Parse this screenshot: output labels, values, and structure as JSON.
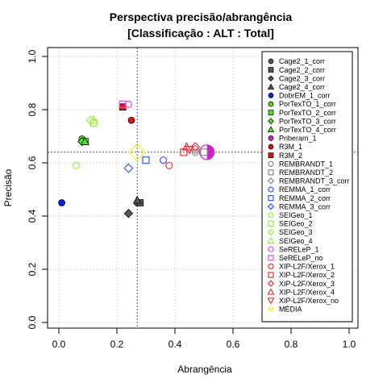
{
  "chart_data": {
    "type": "scatter",
    "title": [
      "Perspectiva precisão/abrangência",
      "[Classificação : ALT : Total]"
    ],
    "xlabel": "Abrangência",
    "ylabel": "Precisão",
    "xlim": [
      0,
      1
    ],
    "ylim": [
      0,
      1
    ],
    "x_ticks": [
      "0.0",
      "0.2",
      "0.4",
      "0.6",
      "0.8",
      "1.0"
    ],
    "y_ticks": [
      "0.0",
      "0.2",
      "0.4",
      "0.6",
      "0.8",
      "1.0"
    ],
    "grid": true,
    "reference_lines": {
      "x": 0.27,
      "y": 0.64
    },
    "legend_position": "top-right",
    "series": [
      {
        "name": "Cage2_1_corr",
        "marker": "circle-filled",
        "color": "#555555",
        "x": 0.27,
        "y": 0.45
      },
      {
        "name": "Cage2_2_corr",
        "marker": "square-filled",
        "color": "#555555",
        "x": 0.28,
        "y": 0.45
      },
      {
        "name": "Cage2_3_corr",
        "marker": "diamond-filled",
        "color": "#555555",
        "x": 0.24,
        "y": 0.41
      },
      {
        "name": "Cage2_4_corr",
        "marker": "triangle-filled",
        "color": "#555555",
        "x": 0.27,
        "y": 0.46
      },
      {
        "name": "DobrEM_1_corr",
        "marker": "circle-filled",
        "color": "#0022dd",
        "x": 0.01,
        "y": 0.45
      },
      {
        "name": "PorTexTO_1_corr",
        "marker": "circle-filled",
        "color": "#55dd22",
        "x": 0.08,
        "y": 0.69
      },
      {
        "name": "PorTexTO_2_corr",
        "marker": "square-filled",
        "color": "#55dd22",
        "x": 0.09,
        "y": 0.68
      },
      {
        "name": "PorTexTO_3_corr",
        "marker": "diamond-filled",
        "color": "#55dd22",
        "x": 0.08,
        "y": 0.68
      },
      {
        "name": "PorTexTO_4_corr",
        "marker": "triangle-filled",
        "color": "#55dd22",
        "x": 0.09,
        "y": 0.68
      },
      {
        "name": "Priberam_1",
        "marker": "circle-half",
        "color": "#cc22cc",
        "x": 0.51,
        "y": 0.64
      },
      {
        "name": "R3M_1",
        "marker": "circle-filled",
        "color": "#dd1111",
        "x": 0.25,
        "y": 0.76
      },
      {
        "name": "R3M_2",
        "marker": "square-filled",
        "color": "#dd1111",
        "x": 0.22,
        "y": 0.81
      },
      {
        "name": "REMBRANDT_1",
        "marker": "circle-open",
        "color": "#888888",
        "x": 0.47,
        "y": 0.64
      },
      {
        "name": "REMBRANDT_2",
        "marker": "square-open",
        "color": "#888888",
        "x": 0.5,
        "y": 0.64
      },
      {
        "name": "REMBRANDT_3_corr",
        "marker": "diamond-open",
        "color": "#888888",
        "x": 0.47,
        "y": 0.65
      },
      {
        "name": "REMMA_1_corr",
        "marker": "circle-open",
        "color": "#3355ff",
        "x": 0.36,
        "y": 0.61
      },
      {
        "name": "REMMA_2_corr",
        "marker": "square-open",
        "color": "#3355ff",
        "x": 0.3,
        "y": 0.61
      },
      {
        "name": "REMMA_3_corr",
        "marker": "diamond-open",
        "color": "#3355ff",
        "x": 0.24,
        "y": 0.58
      },
      {
        "name": "SEIGeo_1",
        "marker": "circle-open",
        "color": "#99ee44",
        "x": 0.06,
        "y": 0.59
      },
      {
        "name": "SEIGeo_2",
        "marker": "square-open",
        "color": "#99ee44",
        "x": 0.12,
        "y": 0.75
      },
      {
        "name": "SEIGeo_3",
        "marker": "diamond-open",
        "color": "#99ee44",
        "x": 0.11,
        "y": 0.76
      },
      {
        "name": "SEIGeo_4",
        "marker": "triangle-open",
        "color": "#99ee44",
        "x": 0.12,
        "y": 0.76
      },
      {
        "name": "SeRELeP_1",
        "marker": "circle-open",
        "color": "#ee44ee",
        "x": 0.24,
        "y": 0.82
      },
      {
        "name": "SeRELeP_no",
        "marker": "square-open",
        "color": "#ee44ee",
        "x": 0.22,
        "y": 0.82
      },
      {
        "name": "XIP-L2F/Xerox_1",
        "marker": "circle-open",
        "color": "#ee3333",
        "x": 0.38,
        "y": 0.59
      },
      {
        "name": "XIP-L2F/Xerox_2",
        "marker": "square-open",
        "color": "#ee3333",
        "x": 0.43,
        "y": 0.64
      },
      {
        "name": "XIP-L2F/Xerox_3",
        "marker": "diamond-open",
        "color": "#ee3333",
        "x": 0.47,
        "y": 0.66
      },
      {
        "name": "XIP-L2F/Xerox_4",
        "marker": "triangle-open",
        "color": "#ee3333",
        "x": 0.44,
        "y": 0.66
      },
      {
        "name": "XIP-L2F/Xerox_no",
        "marker": "triangle-down-open",
        "color": "#ee3333",
        "x": 0.45,
        "y": 0.65
      },
      {
        "name": "MÉDIA",
        "marker": "diamond-open-large",
        "color": "#ffee22",
        "x": 0.27,
        "y": 0.64
      }
    ]
  }
}
